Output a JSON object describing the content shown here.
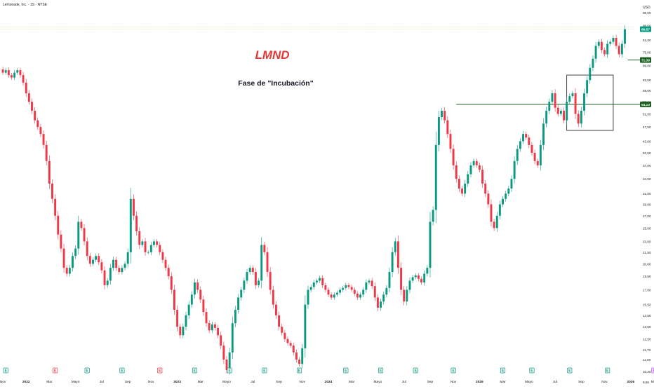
{
  "header": {
    "symbol_line": "Lemonade, Inc. · 1S · NYSE",
    "currency": "USD"
  },
  "annotations": {
    "ticker": "LMND",
    "phase": "Fase de \"Incubación\""
  },
  "colors": {
    "up": "#089981",
    "down": "#f23645",
    "level": "#1b5e20",
    "ticker": "#e53935",
    "dotted": "#c5e1a5"
  },
  "price_badges": [
    {
      "label": "86,57",
      "value": 86.57,
      "color": "#089981"
    },
    {
      "label": "71,39",
      "value": 71.39,
      "color": "#1b5e20"
    },
    {
      "label": "54,13",
      "value": 54.13,
      "color": "#1b5e20"
    }
  ],
  "chart_data": {
    "type": "candlestick",
    "y_scale": "log",
    "ylim": [
      9.56,
      96.0
    ],
    "y_ticks": [
      "96,00",
      "88,50",
      "81,00",
      "75,00",
      "69,00",
      "63,00",
      "59,00",
      "55,00",
      "51,00",
      "47,00",
      "43,00",
      "40,00",
      "37,00",
      "34,00",
      "31,00",
      "29,00",
      "27,00",
      "25,00",
      "23,00",
      "21,50",
      "20,00",
      "18,50",
      "17,00",
      "15,50",
      "14,50",
      "13,50",
      "12,50",
      "11,70",
      "11,00",
      "10,20",
      "9,56"
    ],
    "x_ticks": [
      {
        "label": "Nov",
        "i": 0
      },
      {
        "label": "2022",
        "i": 8
      },
      {
        "label": "Mar",
        "i": 16
      },
      {
        "label": "Mayo",
        "i": 25
      },
      {
        "label": "Jul",
        "i": 34
      },
      {
        "label": "Sep",
        "i": 43
      },
      {
        "label": "Nov",
        "i": 51
      },
      {
        "label": "2023",
        "i": 60
      },
      {
        "label": "Mar",
        "i": 68
      },
      {
        "label": "Mayo",
        "i": 77
      },
      {
        "label": "Jul",
        "i": 86
      },
      {
        "label": "Sep",
        "i": 95
      },
      {
        "label": "Nov",
        "i": 103
      },
      {
        "label": "2024",
        "i": 112
      },
      {
        "label": "Mar",
        "i": 120
      },
      {
        "label": "Mayo",
        "i": 129
      },
      {
        "label": "Jul",
        "i": 138
      },
      {
        "label": "Sep",
        "i": 147
      },
      {
        "label": "Nov",
        "i": 155
      },
      {
        "label": "2025",
        "i": 164
      },
      {
        "label": "Mar",
        "i": 172
      },
      {
        "label": "Mayo",
        "i": 181
      },
      {
        "label": "Jul",
        "i": 190
      },
      {
        "label": "Sep",
        "i": 199
      },
      {
        "label": "Nov",
        "i": 207
      },
      {
        "label": "2026",
        "i": 216
      },
      {
        "label": "Mar",
        "i": 224
      }
    ],
    "events": [
      {
        "letter": "E",
        "i": 1,
        "type": "earnings-green"
      },
      {
        "letter": "E",
        "i": 18,
        "type": "earnings-red"
      },
      {
        "letter": "E",
        "i": 29,
        "type": "earnings-green"
      },
      {
        "letter": "E",
        "i": 41,
        "type": "earnings-green"
      },
      {
        "letter": "E",
        "i": 54,
        "type": "earnings-red"
      },
      {
        "letter": "E",
        "i": 66,
        "type": "earnings-green"
      },
      {
        "letter": "E",
        "i": 78,
        "type": "earnings-green"
      },
      {
        "letter": "E",
        "i": 90,
        "type": "earnings-green"
      },
      {
        "letter": "E",
        "i": 102,
        "type": "earnings-green"
      },
      {
        "letter": "E",
        "i": 118,
        "type": "earnings-green"
      },
      {
        "letter": "E",
        "i": 130,
        "type": "earnings-green"
      },
      {
        "letter": "E",
        "i": 142,
        "type": "earnings-green"
      },
      {
        "letter": "E",
        "i": 155,
        "type": "earnings-green"
      },
      {
        "letter": "E",
        "i": 172,
        "type": "earnings-green"
      },
      {
        "letter": "E",
        "i": 182,
        "type": "earnings-green"
      },
      {
        "letter": "E",
        "i": 195,
        "type": "earnings-green"
      },
      {
        "letter": "E",
        "i": 208,
        "type": "earnings-green"
      },
      {
        "letter": "E",
        "i": 224,
        "type": "earnings-purple"
      }
    ],
    "levels": [
      {
        "value": 54.13,
        "from_i": 156
      },
      {
        "value": 71.39,
        "from_i": 215
      }
    ],
    "box": {
      "i0": 194,
      "i1": 210,
      "top": 65.0,
      "bottom": 46.0
    },
    "closes": [
      66,
      67,
      65,
      64,
      66,
      67,
      65,
      62,
      58,
      55,
      52,
      49,
      47,
      45,
      42,
      38,
      33,
      30,
      27,
      24,
      22,
      19.5,
      18.8,
      19.5,
      21,
      22,
      26,
      25,
      23,
      21,
      20,
      20.5,
      21,
      20.2,
      19.2,
      17.5,
      18,
      19.5,
      20.5,
      19.5,
      19,
      19.5,
      20,
      21.5,
      30,
      27,
      24.5,
      22.5,
      23,
      21.5,
      21.5,
      22.5,
      23,
      22.5,
      21.5,
      20.5,
      19.5,
      18.5,
      17,
      15,
      13.5,
      12.8,
      13.5,
      14.5,
      15.5,
      16.5,
      17.8,
      17,
      16,
      14.8,
      13.8,
      13.2,
      13.7,
      13.4,
      12.8,
      12,
      11,
      10.3,
      11.5,
      13.8,
      15,
      16.2,
      17,
      18,
      19,
      19.5,
      19,
      17.5,
      18,
      22.5,
      21.5,
      19,
      17,
      15.5,
      14.5,
      13.5,
      13,
      12.5,
      12.2,
      12,
      11.5,
      11,
      10.7,
      11.8,
      15.5,
      17,
      17.3,
      17.8,
      18,
      18.3,
      17.5,
      17,
      16.5,
      16.2,
      16.5,
      16.7,
      17,
      17.2,
      17.5,
      17.3,
      17,
      16.6,
      16.2,
      16.5,
      17,
      17.8,
      18,
      17.4,
      16.2,
      15.2,
      15.8,
      16.5,
      17.2,
      19,
      21.5,
      23,
      19.5,
      17,
      15.8,
      17,
      18,
      18.4,
      18.6,
      18.2,
      17.8,
      18.8,
      19.5,
      26,
      28,
      42,
      50,
      52,
      49,
      45,
      41,
      37,
      34,
      32,
      31,
      33,
      35,
      37,
      38,
      37,
      36,
      33,
      31,
      29,
      26,
      25,
      27,
      29,
      30,
      31,
      32,
      34,
      38,
      41,
      43,
      45,
      44,
      42,
      40,
      38,
      37,
      42,
      48,
      52,
      55,
      58,
      53,
      51,
      52,
      49,
      55,
      57,
      58,
      51,
      48,
      52,
      58,
      63,
      68,
      72,
      78,
      80,
      76,
      74,
      79,
      80,
      82,
      78,
      74,
      79,
      86.57
    ]
  }
}
